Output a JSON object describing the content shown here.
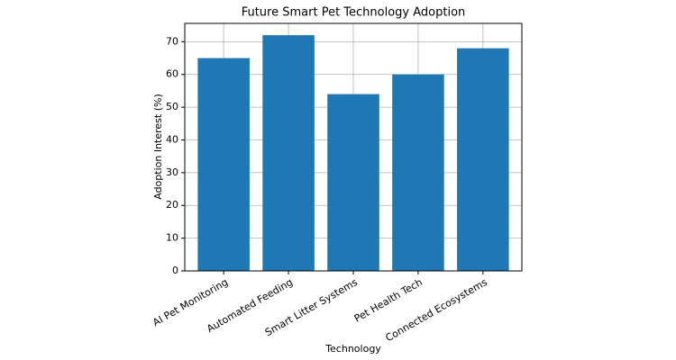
{
  "chart_data": {
    "type": "bar",
    "title": "Future Smart Pet Technology Adoption",
    "x_label": "Technology",
    "y_label": "Adoption Interest (%)",
    "categories": [
      "AI Pet Monitoring",
      "Automated Feeding",
      "Smart Litter Systems",
      "Pet Health Tech",
      "Connected Ecosystems"
    ],
    "values": [
      65,
      72,
      54,
      60,
      68
    ],
    "color": "#1f77b4",
    "ylim": [
      0,
      75.6
    ],
    "yticks": [
      0,
      10,
      20,
      30,
      40,
      50,
      60,
      70
    ],
    "grid": true
  }
}
